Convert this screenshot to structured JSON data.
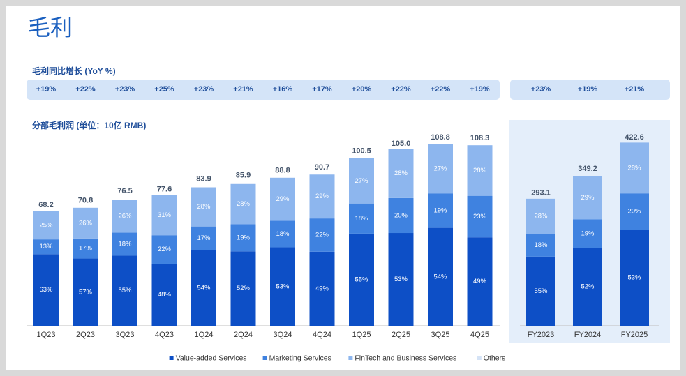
{
  "title": "毛利",
  "yoy_title": "毛利同比增长 (YoY %)",
  "subtitle": "分部毛利润 (单位：10亿 RMB)",
  "chart_data": [
    {
      "type": "bar",
      "stacked": true,
      "categories": [
        "1Q23",
        "2Q23",
        "3Q23",
        "4Q23",
        "1Q24",
        "2Q24",
        "3Q24",
        "4Q24",
        "1Q25",
        "2Q25",
        "3Q25",
        "4Q25"
      ],
      "yoy_labels": [
        "+19%",
        "+22%",
        "+23%",
        "+25%",
        "+23%",
        "+21%",
        "+16%",
        "+17%",
        "+20%",
        "+22%",
        "+22%",
        "+19%"
      ],
      "totals": {
        "values": [
          68.2,
          70.8,
          76.5,
          77.6,
          83.9,
          85.9,
          88.8,
          90.7,
          100.5,
          105.0,
          108.8,
          108.3
        ],
        "value_labels": [
          "68.2",
          "70.8",
          "76.5",
          "77.6",
          "83.9",
          "85.9",
          "88.8",
          "90.7",
          "100.5",
          "105.0",
          "108.8",
          "108.3"
        ]
      },
      "series": [
        {
          "name": "Value-added Services",
          "color": "#0d4fc6",
          "values": [
            63,
            57,
            55,
            48,
            54,
            52,
            53,
            49,
            55,
            53,
            54,
            49
          ],
          "value_labels": [
            "63%",
            "57%",
            "55%",
            "48%",
            "54%",
            "52%",
            "53%",
            "49%",
            "55%",
            "53%",
            "54%",
            "49%"
          ]
        },
        {
          "name": "Marketing Services",
          "color": "#3f82e0",
          "values": [
            13,
            17,
            18,
            22,
            17,
            19,
            18,
            22,
            18,
            20,
            19,
            23
          ],
          "value_labels": [
            "13%",
            "17%",
            "18%",
            "22%",
            "17%",
            "19%",
            "18%",
            "22%",
            "18%",
            "20%",
            "19%",
            "23%"
          ]
        },
        {
          "name": "FinTech and Business Services",
          "color": "#8db6ee",
          "values": [
            25,
            26,
            26,
            31,
            28,
            28,
            29,
            29,
            27,
            28,
            27,
            28
          ],
          "value_labels": [
            "25%",
            "26%",
            "26%",
            "31%",
            "28%",
            "28%",
            "29%",
            "29%",
            "27%",
            "28%",
            "27%",
            "28%"
          ]
        },
        {
          "name": "Others",
          "color": "#d5e3f6",
          "values": [
            null,
            null,
            null,
            null,
            null,
            null,
            null,
            null,
            null,
            null,
            null,
            null
          ]
        }
      ]
    },
    {
      "type": "bar",
      "stacked": true,
      "categories": [
        "FY2023",
        "FY2024",
        "FY2025"
      ],
      "yoy_labels": [
        "+23%",
        "+19%",
        "+21%"
      ],
      "totals": {
        "values": [
          293.1,
          349.2,
          422.6
        ],
        "value_labels": [
          "293.1",
          "349.2",
          "422.6"
        ]
      },
      "series": [
        {
          "name": "Value-added Services",
          "color": "#0d4fc6",
          "values": [
            55,
            52,
            53
          ],
          "value_labels": [
            "55%",
            "52%",
            "53%"
          ]
        },
        {
          "name": "Marketing Services",
          "color": "#3f82e0",
          "values": [
            18,
            19,
            20
          ],
          "value_labels": [
            "18%",
            "19%",
            "20%"
          ]
        },
        {
          "name": "FinTech and Business Services",
          "color": "#8db6ee",
          "values": [
            28,
            29,
            28
          ],
          "value_labels": [
            "28%",
            "29%",
            "28%"
          ]
        },
        {
          "name": "Others",
          "color": "#d5e3f6",
          "values": [
            null,
            null,
            null
          ]
        }
      ]
    }
  ]
}
